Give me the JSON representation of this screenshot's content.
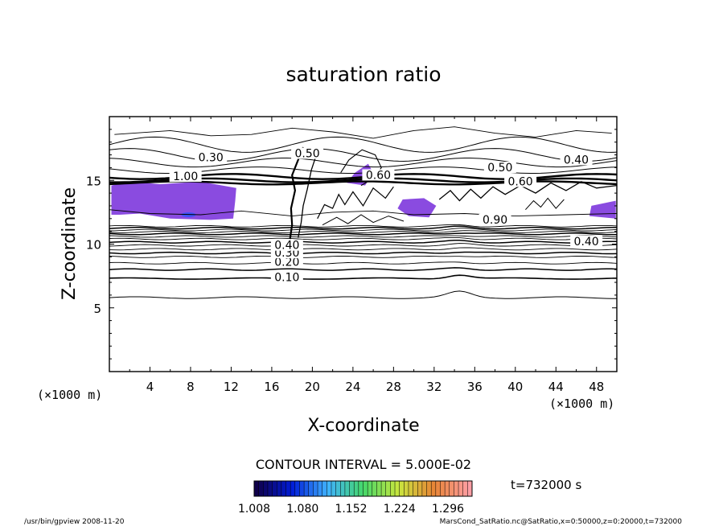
{
  "chart_data": {
    "type": "contour",
    "title": "saturation ratio",
    "xlabel": "X-coordinate",
    "ylabel": "Z-coordinate",
    "x_unit": "(×1000 m)",
    "y_unit": "(×1000 m)",
    "xlim": [
      0,
      50
    ],
    "ylim": [
      0,
      20
    ],
    "x_ticks": [
      "4",
      "8",
      "12",
      "16",
      "20",
      "24",
      "28",
      "32",
      "36",
      "40",
      "44",
      "48"
    ],
    "y_ticks": [
      "5",
      "10",
      "15"
    ],
    "contour_labels": [
      {
        "text": "0.10",
        "x": 17.5,
        "y": 7.3
      },
      {
        "text": "0.20",
        "x": 17.5,
        "y": 8.5
      },
      {
        "text": "0.30",
        "x": 17.5,
        "y": 9.2
      },
      {
        "text": "0.40",
        "x": 17.5,
        "y": 9.8
      },
      {
        "text": "0.30",
        "x": 10.0,
        "y": 16.7
      },
      {
        "text": "1.00",
        "x": 7.5,
        "y": 15.2
      },
      {
        "text": "0.50",
        "x": 19.5,
        "y": 17.0
      },
      {
        "text": "0.60",
        "x": 26.5,
        "y": 15.3
      },
      {
        "text": "0.50",
        "x": 38.5,
        "y": 15.9
      },
      {
        "text": "0.60",
        "x": 40.5,
        "y": 14.8
      },
      {
        "text": "0.40",
        "x": 46.0,
        "y": 16.5
      },
      {
        "text": "0.90",
        "x": 38.0,
        "y": 11.8
      },
      {
        "text": "0.40",
        "x": 47.0,
        "y": 10.1
      }
    ],
    "contour_interval_label": "CONTOUR INTERVAL = 5.000E-02",
    "time_label": "t=732000 s",
    "colorbar_ticks": [
      "1.008",
      "1.080",
      "1.152",
      "1.224",
      "1.296"
    ],
    "colorbar_colors": [
      "#10004a",
      "#001cd8",
      "#3fb2ff",
      "#45d86a",
      "#c9e63e",
      "#e88436",
      "#ff9ea5"
    ],
    "fill_color": "#8a4be0"
  },
  "footer": {
    "left": "/usr/bin/gpview  2008-11-20",
    "right": "MarsCond_SatRatio.nc@SatRatio,x=0:50000,z=0:20000,t=732000"
  }
}
